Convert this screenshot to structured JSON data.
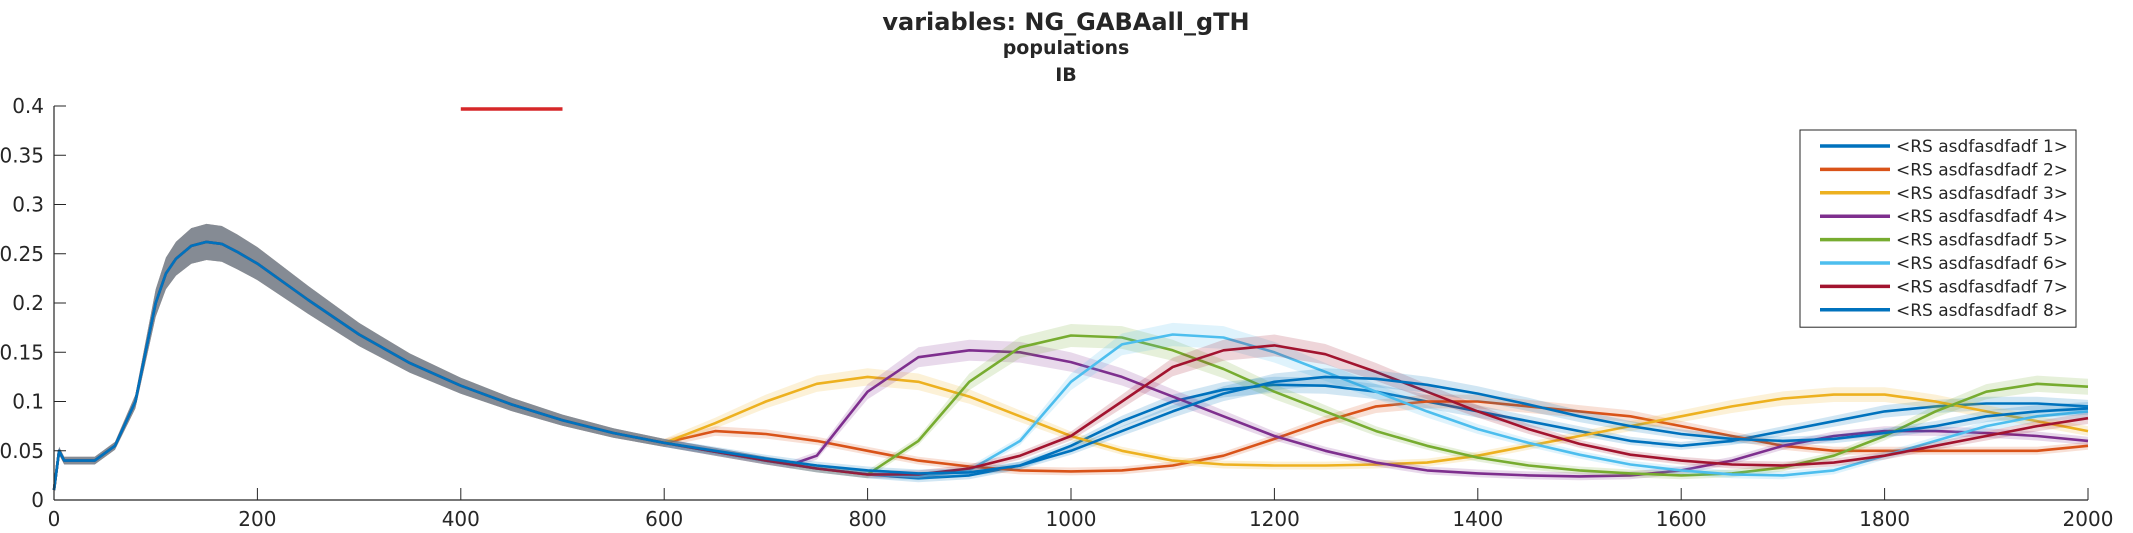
{
  "chart_data": {
    "type": "line",
    "title": "variables: NG_GABAall_gTH",
    "subtitle": "populations",
    "subtitle2": "IB",
    "xlabel": "",
    "ylabel": "",
    "xlim": [
      0,
      2000
    ],
    "ylim": [
      0,
      0.4
    ],
    "xticks": [
      0,
      200,
      400,
      600,
      800,
      1000,
      1200,
      1400,
      1600,
      1800,
      2000
    ],
    "yticks": [
      0,
      0.05,
      0.1,
      0.15,
      0.2,
      0.25,
      0.3,
      0.35,
      0.4
    ],
    "xtick_labels": [
      "0",
      "200",
      "400",
      "600",
      "800",
      "1000",
      "1200",
      "1400",
      "1600",
      "1800",
      "2000"
    ],
    "ytick_labels": [
      "0",
      "0.05",
      "0.1",
      "0.15",
      "0.2",
      "0.25",
      "0.3",
      "0.35",
      "0.4"
    ],
    "grid": false,
    "legend_position": "top-right",
    "shaded_error_band": true,
    "marker_segment": {
      "x": [
        400,
        500
      ],
      "y": 0.397,
      "color": "#d62728"
    },
    "common_prefix": {
      "x": [
        0,
        5,
        10,
        20,
        40,
        60,
        80,
        90,
        100,
        110,
        120,
        135,
        150,
        165,
        180,
        200,
        250,
        300,
        350,
        400,
        450,
        500,
        550,
        600
      ],
      "y": [
        0.01,
        0.05,
        0.04,
        0.04,
        0.04,
        0.055,
        0.1,
        0.15,
        0.2,
        0.23,
        0.245,
        0.258,
        0.262,
        0.26,
        0.252,
        0.24,
        0.203,
        0.168,
        0.139,
        0.116,
        0.097,
        0.081,
        0.068,
        0.058
      ]
    },
    "series": [
      {
        "name": "<RS asdfasdfadf 1>",
        "color": "#0072BD",
        "x": [
          600,
          650,
          700,
          750,
          800,
          850,
          900,
          950,
          1000,
          1050,
          1100,
          1150,
          1200,
          1250,
          1300,
          1350,
          1400,
          1450,
          1500,
          1550,
          1600,
          1650,
          1700,
          1750,
          1800,
          1850,
          1900,
          1950,
          2000
        ],
        "y": [
          0.058,
          0.049,
          0.04,
          0.032,
          0.026,
          0.022,
          0.025,
          0.035,
          0.055,
          0.08,
          0.1,
          0.112,
          0.117,
          0.116,
          0.11,
          0.1,
          0.09,
          0.08,
          0.07,
          0.06,
          0.055,
          0.06,
          0.07,
          0.08,
          0.09,
          0.095,
          0.098,
          0.098,
          0.095
        ]
      },
      {
        "name": "<RS asdfasdfadf 2>",
        "color": "#D95319",
        "x": [
          600,
          650,
          700,
          750,
          800,
          850,
          900,
          950,
          1000,
          1050,
          1100,
          1150,
          1200,
          1250,
          1300,
          1350,
          1400,
          1450,
          1500,
          1550,
          1600,
          1650,
          1700,
          1750,
          1800,
          1850,
          1900,
          1950,
          2000
        ],
        "y": [
          0.07,
          0.07,
          0.067,
          0.06,
          0.05,
          0.04,
          0.034,
          0.03,
          0.029,
          0.03,
          0.035,
          0.045,
          0.062,
          0.08,
          0.095,
          0.1,
          0.1,
          0.095,
          0.09,
          0.085,
          0.075,
          0.065,
          0.055,
          0.05,
          0.05,
          0.05,
          0.05,
          0.05,
          0.055
        ]
      },
      {
        "name": "<RS asdfasdfadf 3>",
        "color": "#EDB120",
        "x": [
          600,
          650,
          700,
          750,
          800,
          850,
          900,
          950,
          1000,
          1050,
          1100,
          1150,
          1200,
          1250,
          1300,
          1350,
          1400,
          1450,
          1500,
          1550,
          1600,
          1650,
          1700,
          1750,
          1800,
          1850,
          1900,
          1950,
          2000
        ],
        "y": [
          0.058,
          0.078,
          0.1,
          0.118,
          0.125,
          0.12,
          0.105,
          0.085,
          0.065,
          0.05,
          0.04,
          0.036,
          0.035,
          0.035,
          0.036,
          0.038,
          0.045,
          0.055,
          0.065,
          0.075,
          0.085,
          0.095,
          0.103,
          0.107,
          0.107,
          0.1,
          0.09,
          0.08,
          0.07
        ]
      },
      {
        "name": "<RS asdfasdfadf 4>",
        "color": "#7E2F8E",
        "x": [
          600,
          650,
          700,
          725,
          750,
          800,
          850,
          900,
          950,
          1000,
          1050,
          1100,
          1150,
          1200,
          1250,
          1300,
          1350,
          1400,
          1450,
          1500,
          1550,
          1600,
          1650,
          1700,
          1750,
          1800,
          1850,
          1900,
          1950,
          2000
        ],
        "y": [
          0.058,
          0.049,
          0.04,
          0.036,
          0.045,
          0.11,
          0.145,
          0.152,
          0.15,
          0.14,
          0.125,
          0.105,
          0.085,
          0.065,
          0.05,
          0.038,
          0.03,
          0.027,
          0.025,
          0.024,
          0.025,
          0.03,
          0.04,
          0.055,
          0.065,
          0.07,
          0.07,
          0.068,
          0.065,
          0.06
        ]
      },
      {
        "name": "<RS asdfasdfadf 5>",
        "color": "#77AC30",
        "x": [
          600,
          650,
          700,
          750,
          800,
          850,
          900,
          950,
          1000,
          1050,
          1100,
          1150,
          1200,
          1250,
          1300,
          1350,
          1400,
          1450,
          1500,
          1550,
          1600,
          1650,
          1700,
          1750,
          1800,
          1850,
          1900,
          1950,
          2000
        ],
        "y": [
          0.058,
          0.049,
          0.04,
          0.032,
          0.026,
          0.06,
          0.12,
          0.155,
          0.167,
          0.165,
          0.152,
          0.133,
          0.11,
          0.09,
          0.07,
          0.055,
          0.043,
          0.035,
          0.03,
          0.027,
          0.025,
          0.027,
          0.033,
          0.045,
          0.065,
          0.09,
          0.11,
          0.118,
          0.115
        ]
      },
      {
        "name": "<RS asdfasdfadf 6>",
        "color": "#4DBEEE",
        "x": [
          600,
          650,
          700,
          750,
          800,
          850,
          900,
          950,
          1000,
          1050,
          1100,
          1150,
          1200,
          1250,
          1300,
          1350,
          1400,
          1450,
          1500,
          1550,
          1600,
          1650,
          1700,
          1750,
          1800,
          1850,
          1900,
          1950,
          2000
        ],
        "y": [
          0.058,
          0.049,
          0.04,
          0.032,
          0.026,
          0.024,
          0.03,
          0.06,
          0.12,
          0.158,
          0.168,
          0.165,
          0.15,
          0.13,
          0.11,
          0.09,
          0.072,
          0.058,
          0.046,
          0.036,
          0.03,
          0.026,
          0.025,
          0.03,
          0.045,
          0.06,
          0.075,
          0.085,
          0.09
        ]
      },
      {
        "name": "<RS asdfasdfadf 7>",
        "color": "#A2142F",
        "x": [
          600,
          650,
          700,
          750,
          800,
          850,
          900,
          950,
          1000,
          1050,
          1100,
          1150,
          1200,
          1250,
          1300,
          1350,
          1400,
          1450,
          1500,
          1550,
          1600,
          1650,
          1700,
          1750,
          1800,
          1850,
          1900,
          1950,
          2000
        ],
        "y": [
          0.058,
          0.049,
          0.04,
          0.032,
          0.026,
          0.026,
          0.032,
          0.045,
          0.065,
          0.1,
          0.135,
          0.152,
          0.157,
          0.148,
          0.13,
          0.11,
          0.09,
          0.072,
          0.057,
          0.046,
          0.04,
          0.036,
          0.035,
          0.038,
          0.045,
          0.055,
          0.065,
          0.075,
          0.083
        ]
      },
      {
        "name": "<RS asdfasdfadf 8>",
        "color": "#0072BD",
        "x": [
          600,
          650,
          700,
          750,
          800,
          850,
          900,
          950,
          1000,
          1050,
          1100,
          1150,
          1200,
          1250,
          1300,
          1350,
          1400,
          1450,
          1500,
          1550,
          1600,
          1650,
          1700,
          1750,
          1800,
          1850,
          1900,
          1950,
          2000
        ],
        "y": [
          0.058,
          0.05,
          0.042,
          0.035,
          0.03,
          0.027,
          0.028,
          0.035,
          0.05,
          0.07,
          0.09,
          0.108,
          0.12,
          0.125,
          0.123,
          0.117,
          0.108,
          0.097,
          0.085,
          0.075,
          0.067,
          0.062,
          0.06,
          0.062,
          0.068,
          0.075,
          0.085,
          0.09,
          0.093
        ]
      }
    ]
  }
}
